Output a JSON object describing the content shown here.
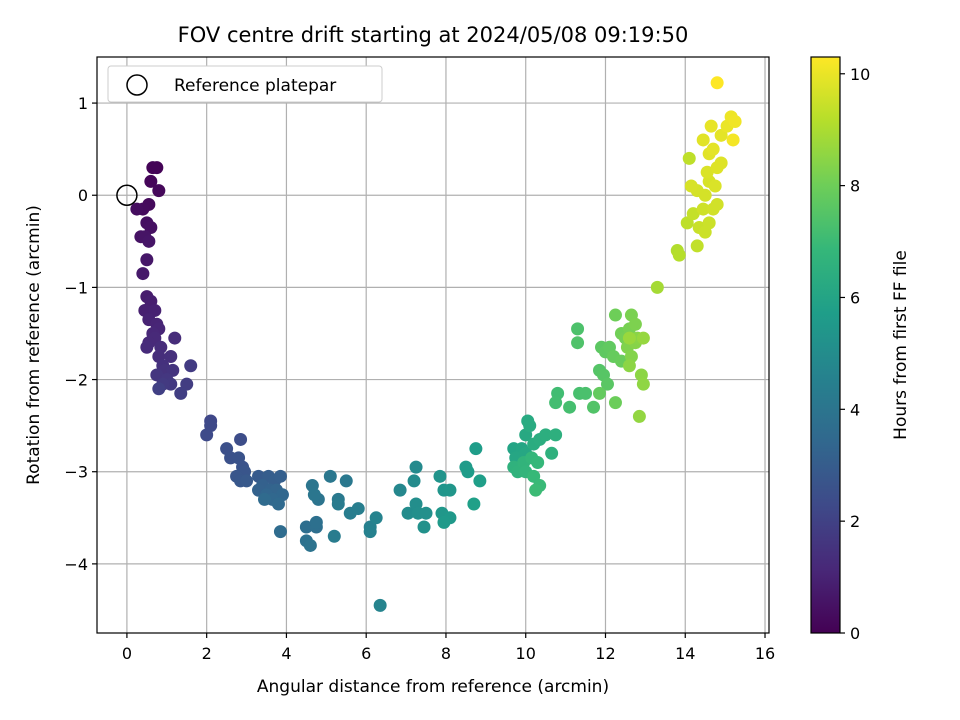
{
  "chart_data": {
    "type": "scatter",
    "title": "FOV centre drift starting at 2024/05/08 09:19:50",
    "xlabel": "Angular distance from reference (arcmin)",
    "ylabel": "Rotation from reference (arcmin)",
    "xlim": [
      -0.75,
      16.1
    ],
    "ylim": [
      -4.75,
      1.5
    ],
    "x_ticks": [
      0,
      2,
      4,
      6,
      8,
      10,
      12,
      14,
      16
    ],
    "y_ticks": [
      -4,
      -3,
      -2,
      -1,
      0,
      1
    ],
    "x_tick_labels": [
      "0",
      "2",
      "4",
      "6",
      "8",
      "10",
      "12",
      "14",
      "16"
    ],
    "y_tick_labels": [
      "−4",
      "−3",
      "−2",
      "−1",
      "0",
      "1"
    ],
    "grid": true,
    "legend": {
      "placement": "upper-left",
      "entries": [
        "Reference platepar"
      ]
    },
    "reference_point": {
      "x": 0,
      "y": 0
    },
    "colorbar": {
      "label": "Hours from first FF file",
      "range": [
        0,
        10.3
      ],
      "ticks": [
        0,
        2,
        4,
        6,
        8,
        10
      ],
      "tick_labels": [
        "0",
        "2",
        "4",
        "6",
        "8",
        "10"
      ],
      "colormap": "viridis"
    },
    "colors": {
      "grid": "#b0b0b0",
      "axis": "#000000",
      "viridis": [
        "#440154",
        "#482878",
        "#3e4a89",
        "#31688e",
        "#26828e",
        "#1f9e89",
        "#35b779",
        "#6ece58",
        "#b5de2b",
        "#fde725"
      ]
    },
    "points": [
      {
        "x": 0.75,
        "y": 0.3,
        "t": 0.05
      },
      {
        "x": 0.65,
        "y": 0.3,
        "t": 0.1
      },
      {
        "x": 0.6,
        "y": 0.15,
        "t": 0.15
      },
      {
        "x": 0.8,
        "y": 0.05,
        "t": 0.2
      },
      {
        "x": 0.55,
        "y": -0.1,
        "t": 0.25
      },
      {
        "x": 0.4,
        "y": -0.15,
        "t": 0.3
      },
      {
        "x": 0.25,
        "y": -0.15,
        "t": 0.35
      },
      {
        "x": 0.5,
        "y": -0.3,
        "t": 0.4
      },
      {
        "x": 0.6,
        "y": -0.35,
        "t": 0.45
      },
      {
        "x": 0.35,
        "y": -0.45,
        "t": 0.5
      },
      {
        "x": 0.45,
        "y": -0.45,
        "t": 0.55
      },
      {
        "x": 0.55,
        "y": -0.5,
        "t": 0.6
      },
      {
        "x": 0.5,
        "y": -0.7,
        "t": 0.65
      },
      {
        "x": 0.4,
        "y": -0.85,
        "t": 0.7
      },
      {
        "x": 0.5,
        "y": -1.1,
        "t": 0.8
      },
      {
        "x": 0.6,
        "y": -1.15,
        "t": 0.85
      },
      {
        "x": 0.45,
        "y": -1.25,
        "t": 0.9
      },
      {
        "x": 0.7,
        "y": -1.25,
        "t": 0.95
      },
      {
        "x": 0.55,
        "y": -1.35,
        "t": 1.0
      },
      {
        "x": 0.75,
        "y": -1.4,
        "t": 1.05
      },
      {
        "x": 0.8,
        "y": -1.45,
        "t": 1.1
      },
      {
        "x": 0.65,
        "y": -1.5,
        "t": 1.15
      },
      {
        "x": 0.7,
        "y": -1.55,
        "t": 1.2
      },
      {
        "x": 0.55,
        "y": -1.6,
        "t": 1.2
      },
      {
        "x": 0.5,
        "y": -1.65,
        "t": 1.25
      },
      {
        "x": 0.85,
        "y": -1.65,
        "t": 1.3
      },
      {
        "x": 1.2,
        "y": -1.55,
        "t": 1.3
      },
      {
        "x": 0.8,
        "y": -1.75,
        "t": 1.35
      },
      {
        "x": 1.1,
        "y": -1.75,
        "t": 1.4
      },
      {
        "x": 0.9,
        "y": -1.85,
        "t": 1.45
      },
      {
        "x": 0.95,
        "y": -1.9,
        "t": 1.5
      },
      {
        "x": 1.15,
        "y": -1.9,
        "t": 1.55
      },
      {
        "x": 0.75,
        "y": -1.95,
        "t": 1.6
      },
      {
        "x": 1.0,
        "y": -2.0,
        "t": 1.65
      },
      {
        "x": 1.1,
        "y": -2.05,
        "t": 1.7
      },
      {
        "x": 0.9,
        "y": -2.05,
        "t": 1.75
      },
      {
        "x": 1.6,
        "y": -1.85,
        "t": 1.8
      },
      {
        "x": 1.5,
        "y": -2.05,
        "t": 1.85
      },
      {
        "x": 1.35,
        "y": -2.15,
        "t": 1.9
      },
      {
        "x": 0.8,
        "y": -2.1,
        "t": 1.95
      },
      {
        "x": 2.1,
        "y": -2.45,
        "t": 2.2
      },
      {
        "x": 2.1,
        "y": -2.5,
        "t": 2.25
      },
      {
        "x": 2.0,
        "y": -2.6,
        "t": 2.3
      },
      {
        "x": 2.85,
        "y": -2.65,
        "t": 2.4
      },
      {
        "x": 2.5,
        "y": -2.75,
        "t": 2.5
      },
      {
        "x": 2.6,
        "y": -2.85,
        "t": 2.55
      },
      {
        "x": 2.8,
        "y": -2.85,
        "t": 2.6
      },
      {
        "x": 2.9,
        "y": -2.95,
        "t": 2.65
      },
      {
        "x": 2.95,
        "y": -3.0,
        "t": 2.7
      },
      {
        "x": 2.75,
        "y": -3.05,
        "t": 2.75
      },
      {
        "x": 2.85,
        "y": -3.1,
        "t": 2.8
      },
      {
        "x": 3.0,
        "y": -3.1,
        "t": 2.85
      },
      {
        "x": 3.3,
        "y": -3.05,
        "t": 2.9
      },
      {
        "x": 3.55,
        "y": -3.05,
        "t": 3.0
      },
      {
        "x": 3.7,
        "y": -3.1,
        "t": 3.05
      },
      {
        "x": 3.85,
        "y": -3.05,
        "t": 3.1
      },
      {
        "x": 3.4,
        "y": -3.15,
        "t": 3.15
      },
      {
        "x": 3.3,
        "y": -3.2,
        "t": 3.2
      },
      {
        "x": 3.6,
        "y": -3.2,
        "t": 3.25
      },
      {
        "x": 3.75,
        "y": -3.2,
        "t": 3.3
      },
      {
        "x": 3.5,
        "y": -3.25,
        "t": 3.35
      },
      {
        "x": 3.9,
        "y": -3.25,
        "t": 3.4
      },
      {
        "x": 3.65,
        "y": -3.3,
        "t": 3.45
      },
      {
        "x": 3.8,
        "y": -3.35,
        "t": 3.5
      },
      {
        "x": 3.45,
        "y": -3.3,
        "t": 3.55
      },
      {
        "x": 3.85,
        "y": -3.65,
        "t": 3.6
      },
      {
        "x": 4.5,
        "y": -3.6,
        "t": 3.7
      },
      {
        "x": 4.75,
        "y": -3.6,
        "t": 3.75
      },
      {
        "x": 4.75,
        "y": -3.55,
        "t": 3.8
      },
      {
        "x": 4.5,
        "y": -3.75,
        "t": 3.85
      },
      {
        "x": 4.6,
        "y": -3.8,
        "t": 3.9
      },
      {
        "x": 4.8,
        "y": -3.3,
        "t": 3.95
      },
      {
        "x": 4.65,
        "y": -3.15,
        "t": 4.0
      },
      {
        "x": 4.7,
        "y": -3.25,
        "t": 4.05
      },
      {
        "x": 5.1,
        "y": -3.05,
        "t": 4.1
      },
      {
        "x": 5.5,
        "y": -3.1,
        "t": 4.15
      },
      {
        "x": 5.3,
        "y": -3.3,
        "t": 4.2
      },
      {
        "x": 5.3,
        "y": -3.35,
        "t": 4.25
      },
      {
        "x": 5.2,
        "y": -3.7,
        "t": 4.3
      },
      {
        "x": 5.6,
        "y": -3.45,
        "t": 4.35
      },
      {
        "x": 5.8,
        "y": -3.4,
        "t": 4.4
      },
      {
        "x": 6.1,
        "y": -3.6,
        "t": 4.5
      },
      {
        "x": 6.1,
        "y": -3.65,
        "t": 4.55
      },
      {
        "x": 6.25,
        "y": -3.5,
        "t": 4.6
      },
      {
        "x": 6.35,
        "y": -4.45,
        "t": 4.65
      },
      {
        "x": 6.85,
        "y": -3.2,
        "t": 4.8
      },
      {
        "x": 7.25,
        "y": -2.95,
        "t": 4.9
      },
      {
        "x": 7.2,
        "y": -3.1,
        "t": 4.95
      },
      {
        "x": 7.05,
        "y": -3.45,
        "t": 5.0
      },
      {
        "x": 7.25,
        "y": -3.35,
        "t": 5.05
      },
      {
        "x": 7.3,
        "y": -3.45,
        "t": 5.1
      },
      {
        "x": 7.5,
        "y": -3.45,
        "t": 5.15
      },
      {
        "x": 7.45,
        "y": -3.6,
        "t": 5.2
      },
      {
        "x": 7.85,
        "y": -3.05,
        "t": 5.3
      },
      {
        "x": 7.95,
        "y": -3.2,
        "t": 5.35
      },
      {
        "x": 8.1,
        "y": -3.2,
        "t": 5.4
      },
      {
        "x": 7.9,
        "y": -3.45,
        "t": 5.45
      },
      {
        "x": 8.1,
        "y": -3.5,
        "t": 5.5
      },
      {
        "x": 7.95,
        "y": -3.55,
        "t": 5.55
      },
      {
        "x": 8.5,
        "y": -2.95,
        "t": 5.6
      },
      {
        "x": 8.55,
        "y": -3.0,
        "t": 5.65
      },
      {
        "x": 8.75,
        "y": -2.75,
        "t": 5.7
      },
      {
        "x": 8.85,
        "y": -3.1,
        "t": 5.75
      },
      {
        "x": 8.7,
        "y": -3.35,
        "t": 5.8
      },
      {
        "x": 9.7,
        "y": -2.75,
        "t": 6.0
      },
      {
        "x": 9.9,
        "y": -2.75,
        "t": 6.05
      },
      {
        "x": 9.75,
        "y": -2.85,
        "t": 6.1
      },
      {
        "x": 10.0,
        "y": -2.8,
        "t": 6.15
      },
      {
        "x": 10.0,
        "y": -2.6,
        "t": 6.2
      },
      {
        "x": 10.05,
        "y": -2.45,
        "t": 6.25
      },
      {
        "x": 10.1,
        "y": -2.5,
        "t": 6.3
      },
      {
        "x": 10.2,
        "y": -2.7,
        "t": 6.35
      },
      {
        "x": 10.35,
        "y": -2.65,
        "t": 6.4
      },
      {
        "x": 10.5,
        "y": -2.6,
        "t": 6.45
      },
      {
        "x": 10.75,
        "y": -2.6,
        "t": 6.5
      },
      {
        "x": 10.65,
        "y": -2.8,
        "t": 6.55
      },
      {
        "x": 9.7,
        "y": -2.95,
        "t": 6.6
      },
      {
        "x": 9.8,
        "y": -3.0,
        "t": 6.65
      },
      {
        "x": 9.95,
        "y": -2.9,
        "t": 6.7
      },
      {
        "x": 10.0,
        "y": -3.0,
        "t": 6.75
      },
      {
        "x": 10.15,
        "y": -2.85,
        "t": 6.8
      },
      {
        "x": 10.3,
        "y": -2.9,
        "t": 6.85
      },
      {
        "x": 10.2,
        "y": -3.05,
        "t": 6.9
      },
      {
        "x": 10.35,
        "y": -3.15,
        "t": 6.95
      },
      {
        "x": 10.25,
        "y": -3.2,
        "t": 7.0
      },
      {
        "x": 10.8,
        "y": -2.15,
        "t": 7.1
      },
      {
        "x": 10.75,
        "y": -2.25,
        "t": 7.15
      },
      {
        "x": 11.1,
        "y": -2.3,
        "t": 7.2
      },
      {
        "x": 11.35,
        "y": -2.15,
        "t": 7.25
      },
      {
        "x": 11.5,
        "y": -2.15,
        "t": 7.3
      },
      {
        "x": 11.3,
        "y": -1.45,
        "t": 7.35
      },
      {
        "x": 11.3,
        "y": -1.6,
        "t": 7.4
      },
      {
        "x": 11.7,
        "y": -2.3,
        "t": 7.45
      },
      {
        "x": 11.85,
        "y": -1.9,
        "t": 7.5
      },
      {
        "x": 11.95,
        "y": -1.95,
        "t": 7.55
      },
      {
        "x": 12.05,
        "y": -2.05,
        "t": 7.6
      },
      {
        "x": 11.9,
        "y": -1.65,
        "t": 7.65
      },
      {
        "x": 12.0,
        "y": -1.7,
        "t": 7.7
      },
      {
        "x": 12.1,
        "y": -1.65,
        "t": 7.75
      },
      {
        "x": 11.85,
        "y": -2.15,
        "t": 7.8
      },
      {
        "x": 12.2,
        "y": -1.75,
        "t": 7.85
      },
      {
        "x": 12.4,
        "y": -1.8,
        "t": 7.9
      },
      {
        "x": 12.25,
        "y": -2.25,
        "t": 7.95
      },
      {
        "x": 12.25,
        "y": -1.3,
        "t": 8.0
      },
      {
        "x": 12.4,
        "y": -1.5,
        "t": 8.05
      },
      {
        "x": 12.5,
        "y": -1.55,
        "t": 8.1
      },
      {
        "x": 12.6,
        "y": -1.45,
        "t": 8.15
      },
      {
        "x": 12.65,
        "y": -1.3,
        "t": 8.2
      },
      {
        "x": 12.75,
        "y": -1.4,
        "t": 8.25
      },
      {
        "x": 12.55,
        "y": -1.65,
        "t": 8.3
      },
      {
        "x": 12.65,
        "y": -1.75,
        "t": 8.35
      },
      {
        "x": 12.75,
        "y": -1.6,
        "t": 8.4
      },
      {
        "x": 12.8,
        "y": -1.55,
        "t": 8.45
      },
      {
        "x": 12.6,
        "y": -1.85,
        "t": 8.5
      },
      {
        "x": 12.9,
        "y": -1.95,
        "t": 8.5
      },
      {
        "x": 12.95,
        "y": -2.05,
        "t": 8.55
      },
      {
        "x": 12.85,
        "y": -2.4,
        "t": 8.6
      },
      {
        "x": 12.95,
        "y": -1.55,
        "t": 8.65
      },
      {
        "x": 12.6,
        "y": -1.55,
        "t": 8.7
      },
      {
        "x": 13.3,
        "y": -1.0,
        "t": 8.9
      },
      {
        "x": 13.8,
        "y": -0.6,
        "t": 9.1
      },
      {
        "x": 13.85,
        "y": -0.65,
        "t": 9.15
      },
      {
        "x": 14.05,
        "y": -0.3,
        "t": 9.3
      },
      {
        "x": 14.3,
        "y": -0.55,
        "t": 9.35
      },
      {
        "x": 14.2,
        "y": -0.2,
        "t": 9.4
      },
      {
        "x": 14.35,
        "y": -0.35,
        "t": 9.45
      },
      {
        "x": 14.5,
        "y": -0.4,
        "t": 9.5
      },
      {
        "x": 14.6,
        "y": -0.3,
        "t": 9.5
      },
      {
        "x": 14.45,
        "y": -0.15,
        "t": 9.55
      },
      {
        "x": 14.7,
        "y": -0.15,
        "t": 9.6
      },
      {
        "x": 14.8,
        "y": -0.1,
        "t": 9.6
      },
      {
        "x": 14.5,
        "y": 0.0,
        "t": 9.65
      },
      {
        "x": 14.3,
        "y": 0.05,
        "t": 9.65
      },
      {
        "x": 14.15,
        "y": 0.1,
        "t": 9.7
      },
      {
        "x": 14.6,
        "y": 0.15,
        "t": 9.7
      },
      {
        "x": 14.75,
        "y": 0.1,
        "t": 9.75
      },
      {
        "x": 14.55,
        "y": 0.25,
        "t": 9.75
      },
      {
        "x": 14.8,
        "y": 0.3,
        "t": 9.8
      },
      {
        "x": 14.9,
        "y": 0.35,
        "t": 9.8
      },
      {
        "x": 14.6,
        "y": 0.45,
        "t": 9.85
      },
      {
        "x": 14.1,
        "y": 0.4,
        "t": 9.3
      },
      {
        "x": 14.45,
        "y": 0.6,
        "t": 9.85
      },
      {
        "x": 14.7,
        "y": 0.5,
        "t": 9.9
      },
      {
        "x": 14.9,
        "y": 0.65,
        "t": 9.9
      },
      {
        "x": 14.65,
        "y": 0.75,
        "t": 9.95
      },
      {
        "x": 15.05,
        "y": 0.75,
        "t": 10.0
      },
      {
        "x": 15.15,
        "y": 0.85,
        "t": 10.05
      },
      {
        "x": 15.25,
        "y": 0.8,
        "t": 10.1
      },
      {
        "x": 15.2,
        "y": 0.6,
        "t": 10.15
      },
      {
        "x": 14.8,
        "y": 1.22,
        "t": 10.3
      }
    ]
  }
}
